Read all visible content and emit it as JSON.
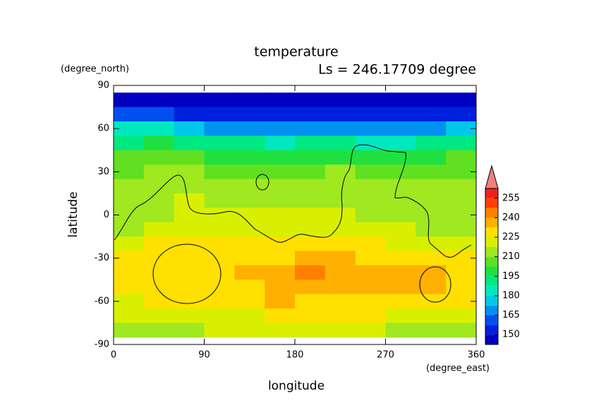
{
  "chart_data": {
    "type": "contour",
    "title": "temperature",
    "subtitle": "Ls = 246.17709 degree",
    "x_label": "longitude",
    "y_label": "latitude",
    "x_unit": "(degree_east)",
    "y_unit": "(degree_north)",
    "xlim": [
      0,
      360
    ],
    "xticks": [
      0,
      90,
      180,
      270,
      360
    ],
    "ylim": [
      -90,
      90
    ],
    "yticks": [
      -90,
      -60,
      -30,
      0,
      30,
      60,
      90
    ],
    "lon": [
      15,
      45,
      75,
      105,
      135,
      165,
      195,
      225,
      255,
      285,
      315,
      345
    ],
    "lat": [
      80,
      70,
      60,
      50,
      40,
      30,
      20,
      10,
      0,
      -10,
      -20,
      -30,
      -40,
      -50,
      -60,
      -70,
      -80
    ],
    "values": [
      [
        148,
        148,
        147,
        147,
        146,
        146,
        146,
        146,
        147,
        147,
        147,
        148
      ],
      [
        160,
        158,
        155,
        152,
        150,
        150,
        151,
        153,
        151,
        150,
        152,
        157
      ],
      [
        180,
        180,
        176,
        172,
        168,
        165,
        168,
        172,
        168,
        166,
        170,
        176
      ],
      [
        194,
        195,
        193,
        191,
        188,
        186,
        188,
        190,
        187,
        186,
        190,
        194
      ],
      [
        203,
        205,
        204,
        202,
        200,
        199,
        200,
        202,
        200,
        199,
        201,
        204
      ],
      [
        209,
        210,
        211,
        209,
        207,
        207,
        208,
        210,
        208,
        206,
        207,
        209
      ],
      [
        212,
        214,
        216,
        213,
        211,
        212,
        213,
        214,
        212,
        211,
        210,
        211
      ],
      [
        214,
        216,
        218,
        217,
        213,
        214,
        216,
        215,
        213,
        212,
        213,
        214
      ],
      [
        213,
        217,
        219,
        219,
        218,
        220,
        222,
        221,
        215,
        214,
        213,
        213
      ],
      [
        215,
        218,
        221,
        222,
        222,
        224,
        224,
        222,
        220,
        218,
        217,
        216
      ],
      [
        222,
        225,
        226,
        225,
        226,
        227,
        227,
        227,
        226,
        224,
        223,
        222
      ],
      [
        226,
        228,
        228,
        227,
        229,
        232,
        233,
        233,
        232,
        232,
        230,
        228
      ],
      [
        226,
        228,
        228,
        228,
        233,
        238,
        241,
        236,
        234,
        234,
        233,
        230
      ],
      [
        225,
        227,
        227,
        227,
        231,
        236,
        238,
        235,
        234,
        234,
        233,
        230
      ],
      [
        223,
        225,
        225,
        225,
        229,
        233,
        232,
        230,
        229,
        229,
        228,
        227
      ],
      [
        220,
        221,
        222,
        222,
        224,
        227,
        228,
        226,
        225,
        224,
        223,
        222
      ],
      [
        213,
        215,
        216,
        218,
        220,
        222,
        222,
        220,
        218,
        216,
        215,
        214
      ]
    ],
    "colorbar": {
      "levels": [
        142.5,
        150,
        157.5,
        165,
        172.5,
        180,
        187.5,
        195,
        202.5,
        210,
        217.5,
        225,
        232.5,
        240,
        247.5,
        255,
        262.5
      ],
      "colors": [
        "#0000c0",
        "#0020e0",
        "#0050f0",
        "#0090f0",
        "#00c8e8",
        "#00e8c0",
        "#00e880",
        "#20e040",
        "#60e020",
        "#a0e820",
        "#d8f000",
        "#ffe000",
        "#ffb000",
        "#ff8000",
        "#ff4000",
        "#f02020"
      ],
      "over_color": "#f08080",
      "ticks": [
        150,
        165,
        180,
        195,
        210,
        225,
        240,
        255
      ]
    }
  }
}
